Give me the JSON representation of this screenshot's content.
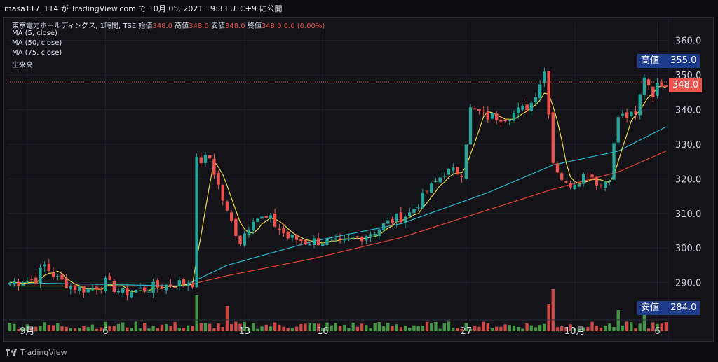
{
  "header": {
    "shared_line": "masa117_114 が TradingView.com で 10月 05, 2021 19:33 UTC+9 に公開"
  },
  "legend": {
    "symbol": "東京電力ホールディングス, 1時間, TSE",
    "open_label": "始値",
    "open_value": "348.0",
    "high_label": "高値",
    "high_value": "348.0",
    "low_label": "安値",
    "low_value": "348.0",
    "close_label": "終値",
    "close_value": "348.0",
    "change": "0.0 (0.00%)",
    "ma5": "MA (5, close)",
    "ma50": "MA (50, close)",
    "ma75": "MA (75, close)",
    "volume": "出来高"
  },
  "tags": {
    "high_label": "高値",
    "high_value": "355.0",
    "last_value": "348.0",
    "low_label": "安値",
    "low_value": "284.0"
  },
  "footer": {
    "brand": "TradingView"
  },
  "colors": {
    "up": "#26a69a",
    "down": "#ef5350",
    "vol_up": "#4caf50",
    "vol_down": "#ef5350",
    "ma5": "#e8d640",
    "ma50": "#26b5c9",
    "ma75": "#e0433b",
    "tag_blue": "#1e3a8a",
    "tag_red": "#ef5350"
  },
  "chart_data": {
    "type": "candlestick",
    "ylim": [
      280,
      365
    ],
    "y_ticks": [
      290,
      300,
      310,
      320,
      330,
      340,
      350,
      360
    ],
    "y_tick_labels": [
      "290.0",
      "300.0",
      "310.0",
      "320.0",
      "330.0",
      "340.0",
      "350.0",
      "360.0"
    ],
    "x_ticks": [
      {
        "label": "9月",
        "i": 4
      },
      {
        "label": "6",
        "i": 22
      },
      {
        "label": "13",
        "i": 54
      },
      {
        "label": "16",
        "i": 72
      },
      {
        "label": "27",
        "i": 105
      },
      {
        "label": "10月",
        "i": 130
      },
      {
        "label": "6",
        "i": 149
      }
    ],
    "bars": 152,
    "anchors": [
      [
        0,
        290
      ],
      [
        6,
        291
      ],
      [
        8,
        295
      ],
      [
        11,
        291
      ],
      [
        14,
        289
      ],
      [
        18,
        288
      ],
      [
        22,
        290
      ],
      [
        26,
        287
      ],
      [
        30,
        288
      ],
      [
        35,
        289
      ],
      [
        40,
        290
      ],
      [
        42,
        290
      ],
      [
        43,
        325
      ],
      [
        46,
        326
      ],
      [
        50,
        310
      ],
      [
        53,
        302
      ],
      [
        56,
        309
      ],
      [
        60,
        308
      ],
      [
        64,
        303
      ],
      [
        68,
        302
      ],
      [
        72,
        302
      ],
      [
        76,
        301
      ],
      [
        80,
        303
      ],
      [
        84,
        305
      ],
      [
        88,
        308
      ],
      [
        92,
        310
      ],
      [
        96,
        316
      ],
      [
        100,
        322
      ],
      [
        104,
        322
      ],
      [
        106,
        340
      ],
      [
        110,
        338
      ],
      [
        114,
        338
      ],
      [
        118,
        340
      ],
      [
        120,
        342
      ],
      [
        123,
        351
      ],
      [
        124,
        340
      ],
      [
        125,
        325
      ],
      [
        128,
        318
      ],
      [
        131,
        320
      ],
      [
        133,
        322
      ],
      [
        136,
        318
      ],
      [
        138,
        321
      ],
      [
        140,
        338
      ],
      [
        144,
        338
      ],
      [
        146,
        350
      ],
      [
        148,
        345
      ],
      [
        150,
        348
      ]
    ],
    "ma50_pts": [
      [
        0,
        290
      ],
      [
        40,
        289
      ],
      [
        50,
        295
      ],
      [
        70,
        302
      ],
      [
        90,
        307
      ],
      [
        110,
        316
      ],
      [
        125,
        324
      ],
      [
        140,
        328
      ],
      [
        151,
        335
      ]
    ],
    "ma75_pts": [
      [
        0,
        289
      ],
      [
        40,
        289
      ],
      [
        50,
        292
      ],
      [
        70,
        297
      ],
      [
        90,
        303
      ],
      [
        110,
        311
      ],
      [
        125,
        317
      ],
      [
        140,
        322
      ],
      [
        151,
        328
      ]
    ],
    "volume_spikes": [
      [
        43,
        0.85
      ],
      [
        50,
        0.6
      ],
      [
        124,
        0.65
      ],
      [
        125,
        1.0
      ],
      [
        140,
        0.5
      ],
      [
        146,
        0.55
      ]
    ]
  }
}
